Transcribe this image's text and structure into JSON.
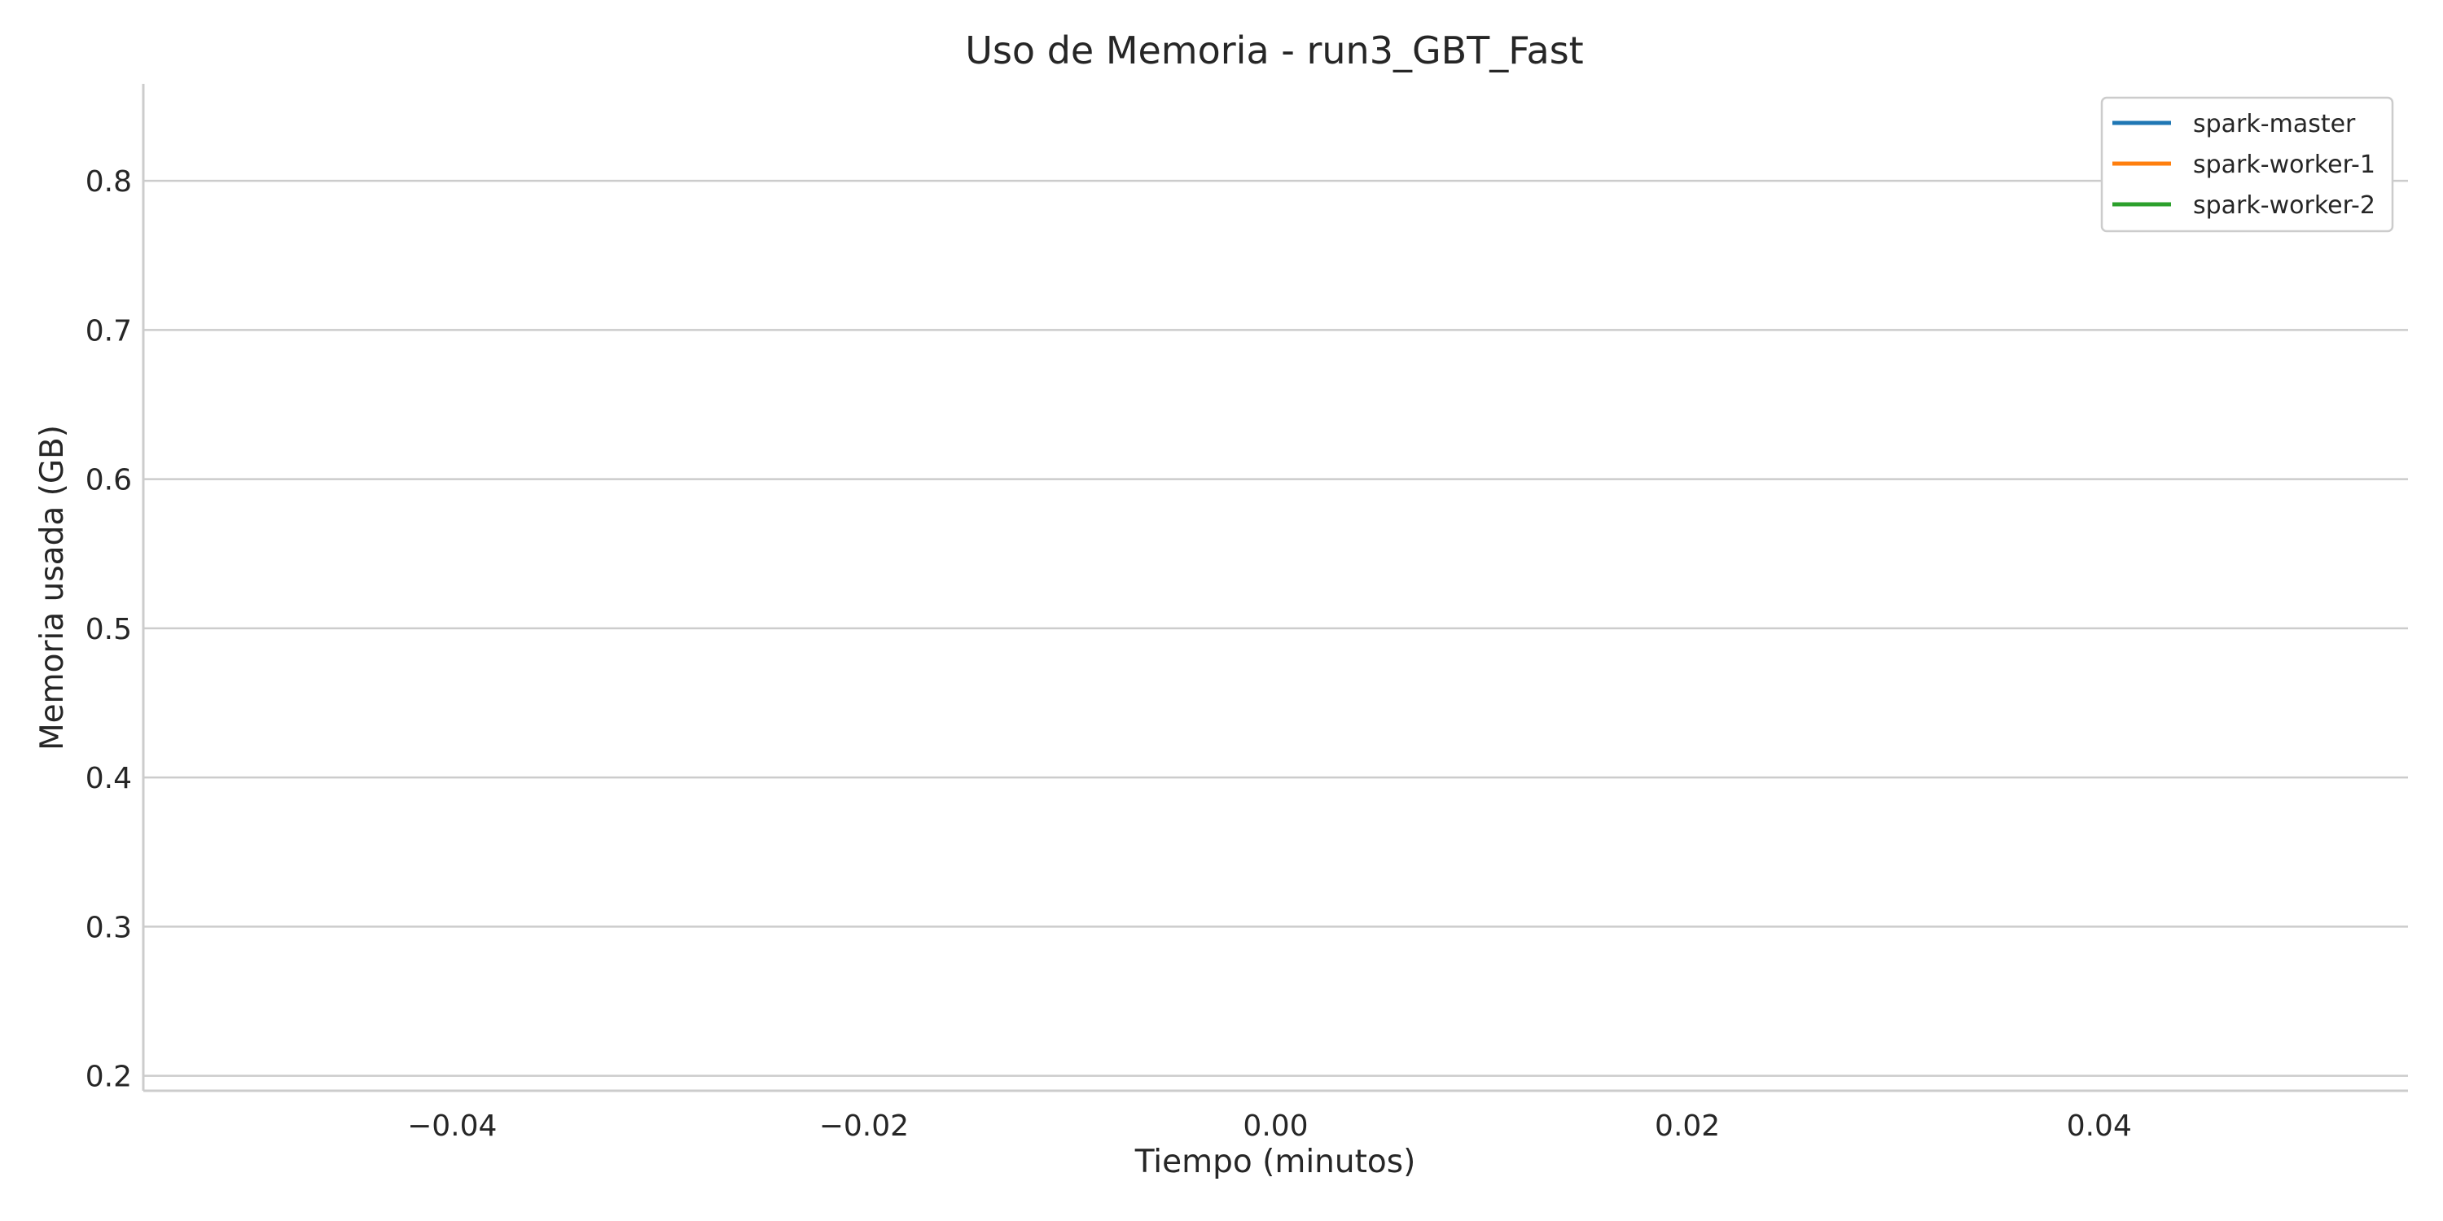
{
  "chart_data": {
    "type": "line",
    "title": "Uso de Memoria - run3_GBT_Fast",
    "xlabel": "Tiempo (minutos)",
    "ylabel": "Memoria usada (GB)",
    "xlim": [
      -0.055,
      0.055
    ],
    "ylim": [
      0.19,
      0.865
    ],
    "x_ticks": [
      -0.04,
      -0.02,
      0.0,
      0.02,
      0.04
    ],
    "x_tick_labels": [
      "−0.04",
      "−0.02",
      "0.00",
      "0.02",
      "0.04"
    ],
    "y_ticks": [
      0.2,
      0.3,
      0.4,
      0.5,
      0.6,
      0.7,
      0.8
    ],
    "y_tick_labels": [
      "0.2",
      "0.3",
      "0.4",
      "0.5",
      "0.6",
      "0.7",
      "0.8"
    ],
    "grid": "horizontal",
    "legend_position": "top-right",
    "series": [
      {
        "name": "spark-master",
        "color": "#1f77b4",
        "x": [],
        "y": []
      },
      {
        "name": "spark-worker-1",
        "color": "#ff7f0e",
        "x": [],
        "y": []
      },
      {
        "name": "spark-worker-2",
        "color": "#2ca02c",
        "x": [],
        "y": []
      }
    ]
  }
}
